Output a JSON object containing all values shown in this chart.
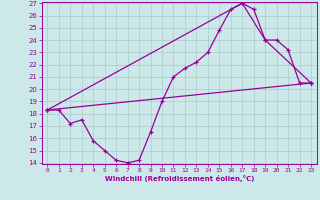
{
  "xlabel": "Windchill (Refroidissement éolien,°C)",
  "bg_color": "#cce8e8",
  "line_color": "#990099",
  "grid_color": "#aacccc",
  "ylim": [
    14,
    27
  ],
  "xlim": [
    -0.5,
    23.5
  ],
  "yticks": [
    14,
    15,
    16,
    17,
    18,
    19,
    20,
    21,
    22,
    23,
    24,
    25,
    26,
    27
  ],
  "xticks": [
    0,
    1,
    2,
    3,
    4,
    5,
    6,
    7,
    8,
    9,
    10,
    11,
    12,
    13,
    14,
    15,
    16,
    17,
    18,
    19,
    20,
    21,
    22,
    23
  ],
  "line1_x": [
    0,
    1,
    2,
    3,
    4,
    5,
    6,
    7,
    8,
    9,
    10,
    11,
    12,
    13,
    14,
    15,
    16,
    17,
    18,
    19,
    20,
    21,
    22,
    23
  ],
  "line1_y": [
    18.3,
    18.3,
    17.2,
    17.5,
    15.8,
    15.0,
    14.2,
    14.0,
    14.2,
    16.5,
    19.0,
    21.0,
    21.7,
    22.2,
    23.0,
    24.8,
    26.5,
    27.0,
    26.5,
    24.0,
    24.0,
    23.2,
    20.5,
    20.5
  ],
  "line2_x": [
    0,
    23
  ],
  "line2_y": [
    18.3,
    20.5
  ],
  "line3_x": [
    0,
    17,
    19,
    23
  ],
  "line3_y": [
    18.3,
    27.0,
    24.0,
    20.5
  ]
}
